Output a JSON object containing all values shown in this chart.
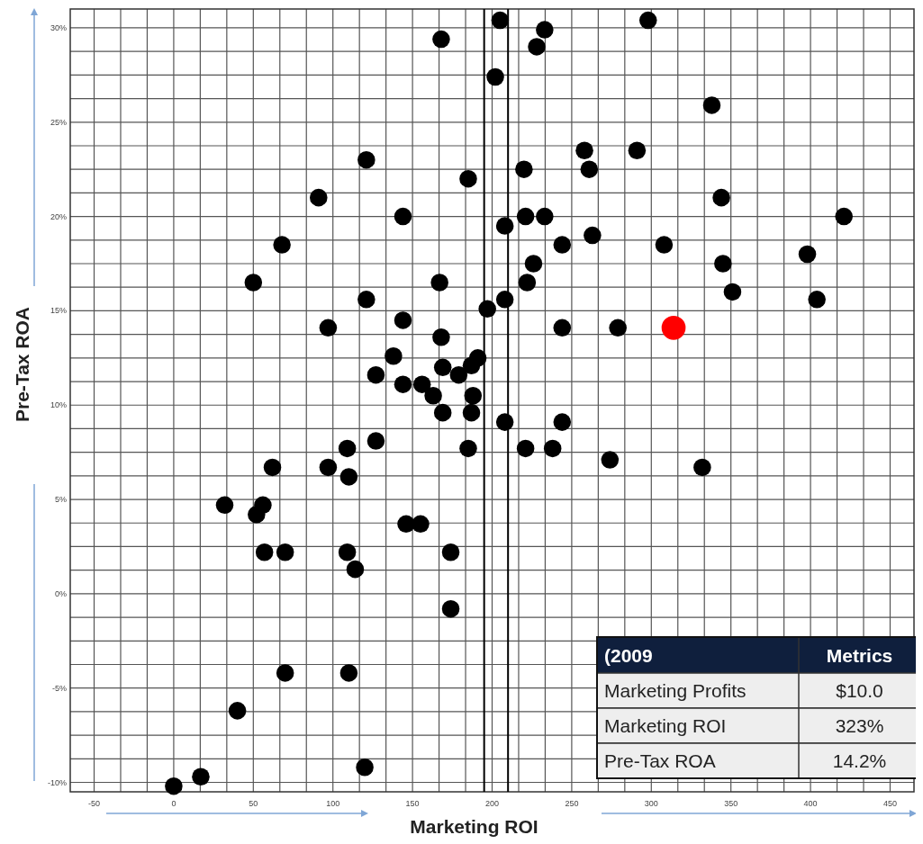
{
  "chart_data": {
    "type": "scatter",
    "xlabel": "Marketing ROI",
    "ylabel": "Pre-Tax ROA",
    "xlim": [
      -65,
      465
    ],
    "ylim": [
      -10.5,
      31
    ],
    "xticks": [
      -50,
      0,
      50,
      100,
      150,
      200,
      250,
      300,
      350,
      400,
      450
    ],
    "yticks": [
      {
        "value": -10,
        "label": "-10%"
      },
      {
        "value": -5,
        "label": "-5%"
      },
      {
        "value": 0,
        "label": "0%"
      },
      {
        "value": 5,
        "label": "5%"
      },
      {
        "value": 10,
        "label": "10%"
      },
      {
        "value": 15,
        "label": "15%"
      },
      {
        "value": 20,
        "label": "20%"
      },
      {
        "value": 25,
        "label": "25%"
      },
      {
        "value": 30,
        "label": "30%"
      }
    ],
    "grid": true,
    "marker": "circle",
    "ref_lines": [
      {
        "axis": "x",
        "value": 195,
        "color": "#000000"
      },
      {
        "axis": "x",
        "value": 210,
        "color": "#000000"
      }
    ],
    "series": [
      {
        "color": "#000000",
        "x": [
          0,
          17,
          120,
          40,
          70,
          110,
          174,
          114,
          57,
          70,
          109,
          174,
          146,
          155,
          32,
          52,
          56,
          62,
          97,
          110,
          109,
          127,
          185,
          221,
          238,
          274,
          332,
          208,
          244,
          169,
          187,
          188,
          163,
          156,
          144,
          127,
          138,
          169,
          179,
          187,
          191,
          168,
          144,
          97,
          244,
          279,
          197,
          208,
          121,
          167,
          50,
          222,
          226,
          244,
          208,
          221,
          233,
          144,
          263,
          308,
          345,
          351,
          398,
          404,
          421,
          68,
          91,
          121,
          185,
          220,
          258,
          261,
          291,
          344,
          338,
          202,
          168,
          228,
          233,
          205,
          298
        ],
        "values": [
          -10.2,
          -9.7,
          -9.2,
          -6.2,
          -4.2,
          -4.2,
          -0.8,
          1.3,
          2.2,
          2.2,
          2.2,
          2.2,
          3.7,
          3.7,
          4.7,
          4.2,
          4.7,
          6.7,
          6.7,
          6.2,
          7.7,
          8.1,
          7.7,
          7.7,
          7.7,
          7.1,
          6.7,
          9.1,
          9.1,
          9.6,
          9.6,
          10.5,
          10.5,
          11.1,
          11.1,
          11.6,
          12.6,
          12,
          11.6,
          12.1,
          12.5,
          13.6,
          14.5,
          14.1,
          14.1,
          14.1,
          15.1,
          15.6,
          15.6,
          16.5,
          16.5,
          16.5,
          17.5,
          18.5,
          19.5,
          20,
          20,
          20,
          19,
          18.5,
          17.5,
          16,
          18,
          15.6,
          20,
          18.5,
          21,
          23,
          22,
          22.5,
          23.5,
          22.5,
          23.5,
          21,
          25.9,
          27.4,
          29.4,
          29,
          29.9,
          30.4,
          30.4
        ]
      },
      {
        "color": "#ff0000",
        "x": [
          314
        ],
        "values": [
          14.1
        ]
      }
    ],
    "annotations": [
      "(2009",
      "Metrics",
      "Marketing Profits",
      "$10.0",
      "Marketing ROI",
      "323%",
      "Pre-Tax ROA",
      "14.2%"
    ]
  }
}
